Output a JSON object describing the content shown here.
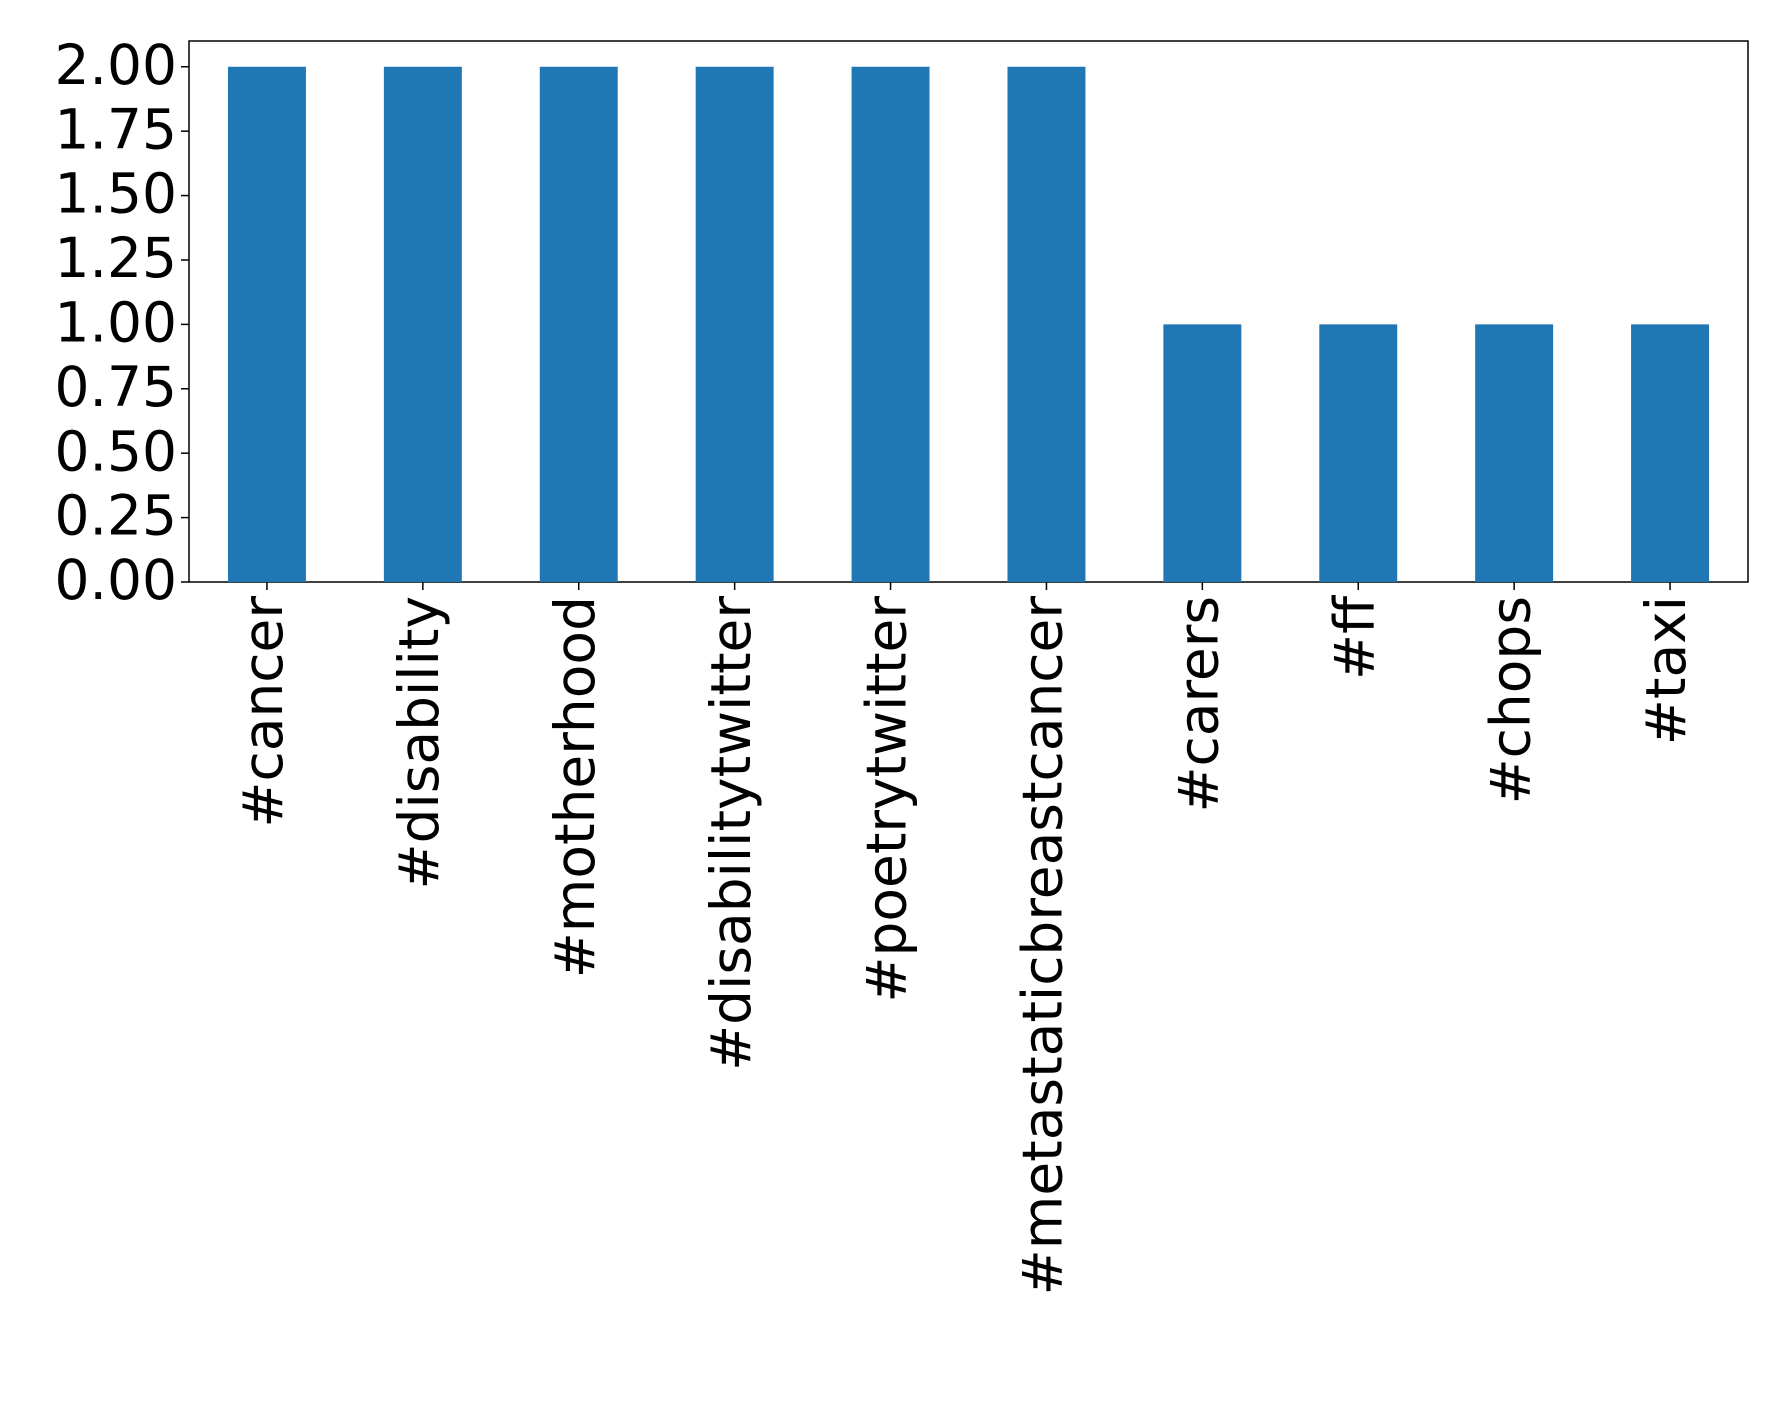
{
  "chart_data": {
    "type": "bar",
    "categories": [
      "#cancer",
      "#disability",
      "#motherhood",
      "#disabilitytwitter",
      "#poetrytwitter",
      "#metastaticbreastcancer",
      "#carers",
      "#ff",
      "#chops",
      "#taxi"
    ],
    "values": [
      2,
      2,
      2,
      2,
      2,
      2,
      1,
      1,
      1,
      1
    ],
    "color": "#1f77b4",
    "ylim": [
      0,
      2.1
    ],
    "yticks": [
      {
        "value": 0,
        "label": "0.00"
      },
      {
        "value": 0.25,
        "label": "0.25"
      },
      {
        "value": 0.5,
        "label": "0.50"
      },
      {
        "value": 0.75,
        "label": "0.75"
      },
      {
        "value": 1,
        "label": "1.00"
      },
      {
        "value": 1.25,
        "label": "1.25"
      },
      {
        "value": 1.5,
        "label": "1.50"
      },
      {
        "value": 1.75,
        "label": "1.75"
      },
      {
        "value": 2,
        "label": "2.00"
      }
    ],
    "grid": false
  }
}
